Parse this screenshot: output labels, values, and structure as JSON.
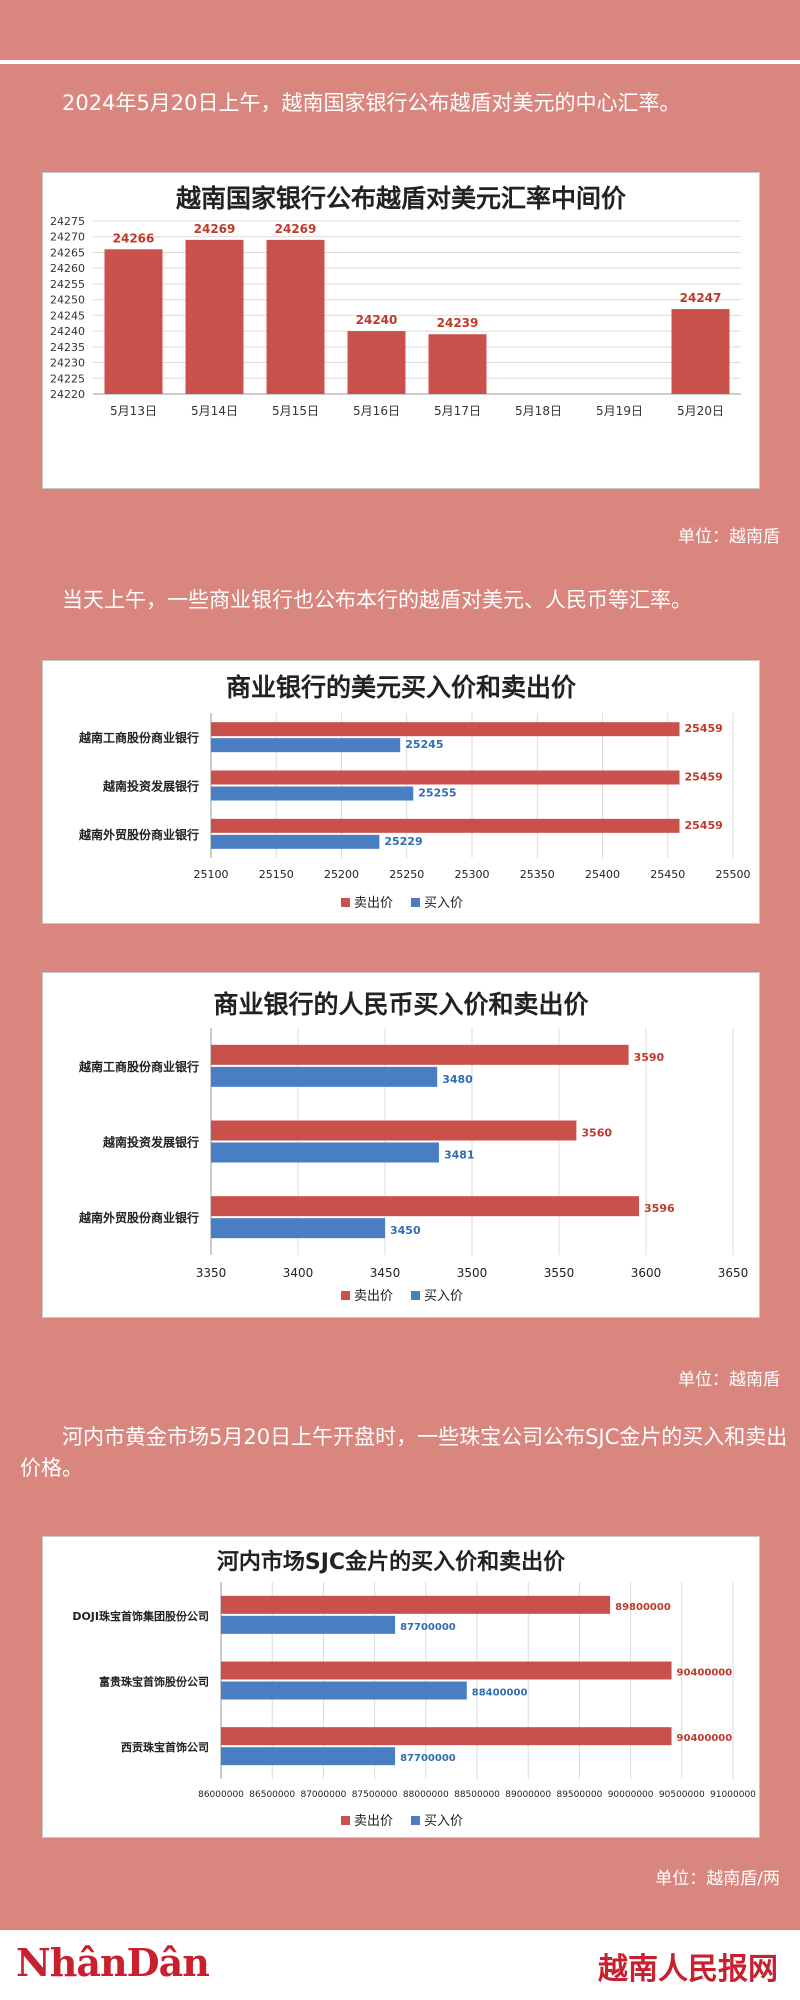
{
  "intro1": "2024年5月20日上午，越南国家银行公布越盾对美元的中心汇率。",
  "intro2": "当天上午，一些商业银行也公布本行的越盾对美元、人民币等汇率。",
  "intro3": "河内市黄金市场5月20日上午开盘时，一些珠宝公司公布SJC金片的买入和卖出价格。",
  "unit1": "单位：越南盾",
  "unit2": "单位：越南盾",
  "unit3": "单位：越南盾/两",
  "footer": {
    "left_logo": "NhânDân",
    "right_logo": "越南人民报网"
  },
  "colors": {
    "sell": "#c9514c",
    "buy": "#4a7ec2",
    "background": "#d9867f",
    "brand": "#c8202f"
  },
  "chart_data": [
    {
      "type": "bar",
      "title": "越南国家银行公布越盾对美元汇率中间价",
      "categories": [
        "5月13日",
        "5月14日",
        "5月15日",
        "5月16日",
        "5月17日",
        "5月18日",
        "5月19日",
        "5月20日"
      ],
      "values": [
        24266,
        24269,
        24269,
        24240,
        24239,
        null,
        null,
        24247
      ],
      "value_labels": [
        "24266",
        "24269",
        "24269",
        "24240",
        "24239",
        "",
        "",
        "24247"
      ],
      "ylim": [
        24220,
        24275
      ],
      "yticks": [
        24220,
        24225,
        24230,
        24235,
        24240,
        24245,
        24250,
        24255,
        24260,
        24265,
        24270,
        24275
      ],
      "grid": true
    },
    {
      "type": "bar",
      "orientation": "horizontal",
      "title": "商业银行的美元买入价和卖出价",
      "categories": [
        "越南工商股份商业银行",
        "越南投资发展银行",
        "越南外贸股份商业银行"
      ],
      "series": [
        {
          "name": "卖出价",
          "values": [
            25459,
            25459,
            25459
          ]
        },
        {
          "name": "买入价",
          "values": [
            25245,
            25255,
            25229
          ]
        }
      ],
      "xlim": [
        25100,
        25500
      ],
      "xticks": [
        25100,
        25150,
        25200,
        25250,
        25300,
        25350,
        25400,
        25450,
        25500
      ],
      "legend": "bottom",
      "grid": true
    },
    {
      "type": "bar",
      "orientation": "horizontal",
      "title": "商业银行的人民币买入价和卖出价",
      "categories": [
        "越南工商股份商业银行",
        "越南投资发展银行",
        "越南外贸股份商业银行"
      ],
      "series": [
        {
          "name": "卖出价",
          "values": [
            3590,
            3560,
            3596
          ]
        },
        {
          "name": "买入价",
          "values": [
            3480,
            3481,
            3450
          ]
        }
      ],
      "xlim": [
        3350,
        3650
      ],
      "xticks": [
        3350,
        3400,
        3450,
        3500,
        3550,
        3600,
        3650
      ],
      "legend": "bottom",
      "grid": true
    },
    {
      "type": "bar",
      "orientation": "horizontal",
      "title": "河内市场SJC金片的买入价和卖出价",
      "categories": [
        "DOJI珠宝首饰集团股份公司",
        "富贵珠宝首饰股份公司",
        "西贡珠宝首饰公司"
      ],
      "series": [
        {
          "name": "卖出价",
          "values": [
            89800000,
            90400000,
            90400000
          ]
        },
        {
          "name": "买入价",
          "values": [
            87700000,
            88400000,
            87700000
          ]
        }
      ],
      "xlim": [
        86000000,
        91000000
      ],
      "xticks": [
        86000000,
        86500000,
        87000000,
        87500000,
        88000000,
        88500000,
        89000000,
        89500000,
        90000000,
        90500000,
        91000000
      ],
      "legend": "bottom",
      "grid": true
    }
  ]
}
